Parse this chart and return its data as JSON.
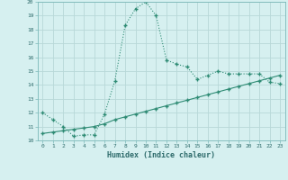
{
  "xlabel": "Humidex (Indice chaleur)",
  "x_values": [
    0,
    1,
    2,
    3,
    4,
    5,
    6,
    7,
    8,
    9,
    10,
    11,
    12,
    13,
    14,
    15,
    16,
    17,
    18,
    19,
    20,
    21,
    22,
    23
  ],
  "line1_y": [
    12.0,
    11.5,
    11.0,
    10.3,
    10.4,
    10.4,
    11.9,
    14.3,
    18.3,
    19.5,
    20.0,
    19.0,
    15.8,
    15.5,
    15.3,
    14.4,
    14.7,
    15.0,
    14.8,
    14.8,
    14.8,
    14.8,
    14.2,
    14.1
  ],
  "line2_y": [
    10.5,
    10.6,
    10.7,
    10.8,
    10.9,
    11.0,
    11.2,
    11.5,
    11.7,
    11.9,
    12.1,
    12.3,
    12.5,
    12.7,
    12.9,
    13.1,
    13.3,
    13.5,
    13.7,
    13.9,
    14.1,
    14.3,
    14.5,
    14.7
  ],
  "line_color": "#2e8b74",
  "bg_color": "#d6f0f0",
  "grid_color": "#b8d8d8",
  "ylim": [
    10,
    20
  ],
  "yticks": [
    10,
    11,
    12,
    13,
    14,
    15,
    16,
    17,
    18,
    19,
    20
  ],
  "xticks": [
    0,
    1,
    2,
    3,
    4,
    5,
    6,
    7,
    8,
    9,
    10,
    11,
    12,
    13,
    14,
    15,
    16,
    17,
    18,
    19,
    20,
    21,
    22,
    23
  ]
}
